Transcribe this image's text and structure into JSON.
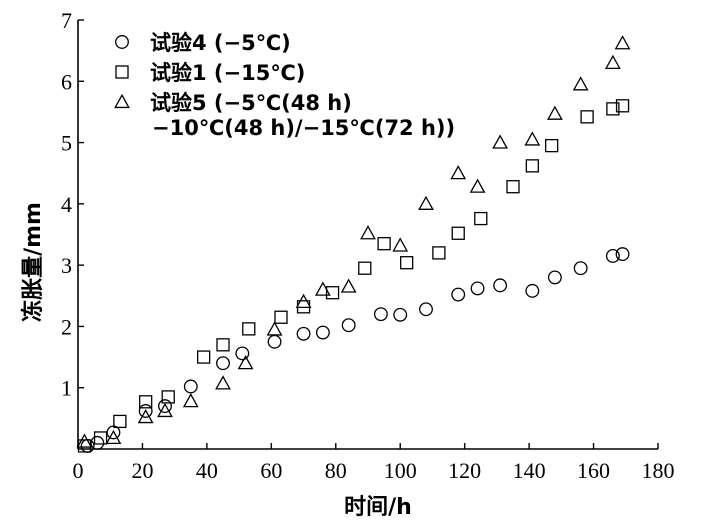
{
  "chart_data": {
    "type": "scatter",
    "title": "",
    "xlabel": "时间/h",
    "ylabel": "冻胀量/mm",
    "xlim": [
      0,
      180
    ],
    "ylim": [
      0,
      7
    ],
    "xticks": [
      0,
      20,
      40,
      60,
      80,
      100,
      120,
      140,
      160,
      180
    ],
    "yticks": [
      1,
      2,
      3,
      4,
      5,
      6,
      7
    ],
    "grid": false,
    "legend_position": "top-left",
    "series": [
      {
        "name": "试验4 (−5℃)",
        "marker": "circle",
        "points": [
          [
            3,
            0.05
          ],
          [
            6,
            0.1
          ],
          [
            11,
            0.27
          ],
          [
            21,
            0.62
          ],
          [
            27,
            0.7
          ],
          [
            35,
            1.02
          ],
          [
            45,
            1.4
          ],
          [
            51,
            1.56
          ],
          [
            61,
            1.75
          ],
          [
            70,
            1.88
          ],
          [
            76,
            1.9
          ],
          [
            84,
            2.02
          ],
          [
            94,
            2.2
          ],
          [
            100,
            2.19
          ],
          [
            108,
            2.28
          ],
          [
            118,
            2.52
          ],
          [
            124,
            2.62
          ],
          [
            131,
            2.67
          ],
          [
            141,
            2.58
          ],
          [
            148,
            2.8
          ],
          [
            156,
            2.95
          ],
          [
            166,
            3.15
          ],
          [
            169,
            3.18
          ]
        ]
      },
      {
        "name": "试验1 (−15℃)",
        "marker": "square",
        "points": [
          [
            2,
            0.05
          ],
          [
            7,
            0.18
          ],
          [
            13,
            0.45
          ],
          [
            21,
            0.77
          ],
          [
            28,
            0.85
          ],
          [
            39,
            1.5
          ],
          [
            45,
            1.7
          ],
          [
            53,
            1.96
          ],
          [
            63,
            2.15
          ],
          [
            70,
            2.32
          ],
          [
            79,
            2.55
          ],
          [
            89,
            2.95
          ],
          [
            95,
            3.35
          ],
          [
            102,
            3.04
          ],
          [
            112,
            3.2
          ],
          [
            118,
            3.52
          ],
          [
            125,
            3.76
          ],
          [
            135,
            4.28
          ],
          [
            141,
            4.62
          ],
          [
            147,
            4.95
          ],
          [
            158,
            5.42
          ],
          [
            166,
            5.55
          ],
          [
            169,
            5.6
          ]
        ]
      },
      {
        "name": "试验5 (−5℃(48 h) −10℃(48 h)/−15℃(72 h))",
        "marker": "triangle",
        "points": [
          [
            2,
            0.12
          ],
          [
            11,
            0.18
          ],
          [
            21,
            0.52
          ],
          [
            27,
            0.62
          ],
          [
            35,
            0.78
          ],
          [
            45,
            1.07
          ],
          [
            52,
            1.4
          ],
          [
            61,
            1.95
          ],
          [
            70,
            2.4
          ],
          [
            76,
            2.6
          ],
          [
            84,
            2.65
          ],
          [
            90,
            3.52
          ],
          [
            100,
            3.32
          ],
          [
            108,
            4.0
          ],
          [
            118,
            4.5
          ],
          [
            124,
            4.28
          ],
          [
            131,
            5.0
          ],
          [
            141,
            5.05
          ],
          [
            148,
            5.47
          ],
          [
            156,
            5.95
          ],
          [
            166,
            6.3
          ],
          [
            169,
            6.62
          ]
        ]
      }
    ]
  },
  "legend": {
    "items": [
      {
        "marker": "circle",
        "label": "试验4 (−5℃)"
      },
      {
        "marker": "square",
        "label": "试验1 (−15℃)"
      },
      {
        "marker": "triangle",
        "label": "试验5 (−5℃(48 h)"
      }
    ],
    "continuation": "−10℃(48 h)/−15℃(72 h))"
  }
}
